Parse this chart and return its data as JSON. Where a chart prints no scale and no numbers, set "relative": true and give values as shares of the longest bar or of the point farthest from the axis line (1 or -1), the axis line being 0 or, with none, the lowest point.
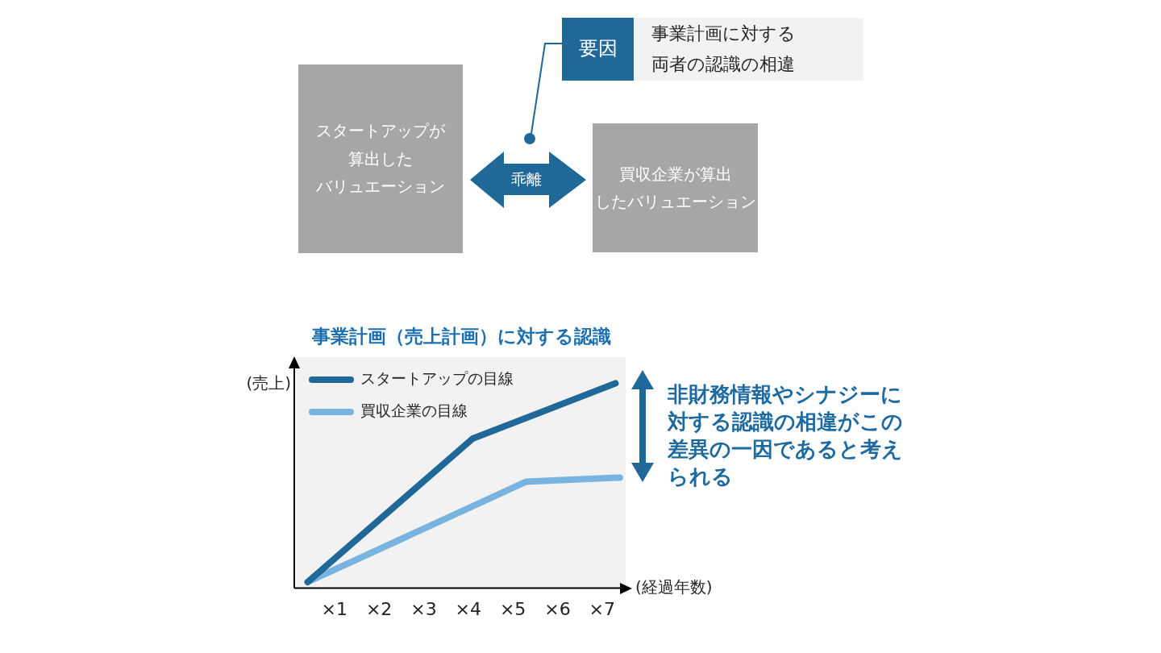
{
  "chart_data": [
    {
      "type": "other",
      "annotations": [
        "要因",
        "事業計画に対する両者の認識の相違",
        "スタートアップが算出したバリュエーション",
        "乖離",
        "買収企業が算出したバリュエーション"
      ]
    },
    {
      "type": "line",
      "title": "事業計画（売上計画）に対する認識",
      "xlabel": "(経過年数)",
      "ylabel": "(売上)",
      "relative": true,
      "xlim": [
        0.1,
        7.6
      ],
      "xticks": [
        {
          "value": 1,
          "label": "×1"
        },
        {
          "value": 2,
          "label": "×2"
        },
        {
          "value": 3,
          "label": "×3"
        },
        {
          "value": 4,
          "label": "×4"
        },
        {
          "value": 5,
          "label": "×5"
        },
        {
          "value": 6,
          "label": "×6"
        },
        {
          "value": 7,
          "label": "×7"
        }
      ],
      "series": [
        {
          "name": "スタートアップの目線",
          "color": "#1f6897",
          "x": [
            0.4,
            4.1,
            7.3
          ],
          "values": [
            0.03,
            0.73,
            1
          ]
        },
        {
          "name": "買収企業の目線",
          "color": "#78b4df",
          "x": [
            0.4,
            5.3,
            7.4
          ],
          "values": [
            0.03,
            0.52,
            0.54
          ]
        }
      ],
      "legend": "top left",
      "marker": "none",
      "line_style": "solid",
      "annotations": [
        "非財務情報やシナジーに対する認識の相違がこの差異の一因であると考えられる"
      ]
    }
  ]
}
